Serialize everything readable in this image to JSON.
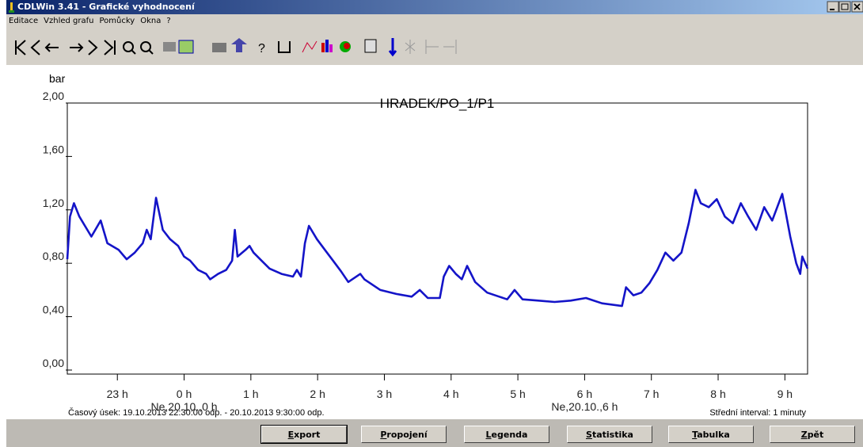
{
  "window": {
    "title": "CDLWin 3.41 - Grafické vyhodnocení",
    "menu": [
      "Editace",
      "Vzhled grafu",
      "Pomůcky",
      "Okna",
      "?"
    ],
    "buttons": [
      "Export",
      "Propojení",
      "Legenda",
      "Statistika",
      "Tabulka",
      "Zpět"
    ]
  },
  "chart_data": {
    "type": "line",
    "title": "HRADEK/PO_1/P1",
    "y_label": "bar",
    "xlim": [
      22.25,
      33.34
    ],
    "xticks": [
      {
        "value": 23,
        "label": "23 h"
      },
      {
        "value": 24,
        "label": "0 h"
      },
      {
        "value": 25,
        "label": "1 h"
      },
      {
        "value": 26,
        "label": "2 h"
      },
      {
        "value": 27,
        "label": "3 h"
      },
      {
        "value": 28,
        "label": "4 h"
      },
      {
        "value": 29,
        "label": "5 h"
      },
      {
        "value": 30,
        "label": "6 h"
      },
      {
        "value": 31,
        "label": "7 h"
      },
      {
        "value": 32,
        "label": "8 h"
      },
      {
        "value": 33,
        "label": "9 h"
      }
    ],
    "ylim": [
      -0.03,
      2.0
    ],
    "yticks": [
      {
        "value": 0,
        "label": "0,00"
      },
      {
        "value": 0.4,
        "label": "0,40"
      },
      {
        "value": 0.8,
        "label": "0,80"
      },
      {
        "value": 1.2,
        "label": "1,20"
      },
      {
        "value": 1.6,
        "label": "1,60"
      },
      {
        "value": 2.0,
        "label": "2,00"
      }
    ],
    "annotations": [
      {
        "text": "Ne,20.10.,0 h",
        "x": 24
      },
      {
        "text": "Ne,20.10.,6 h",
        "x": 30
      }
    ],
    "footer_left": "Časový úsek: 19.10.2013 22:30:00 odp. - 20.10.2013 9:30:00 odp.",
    "footer_right": "Střední interval: 1 minuty",
    "x": [
      22.25,
      22.29,
      22.35,
      22.43,
      22.61,
      22.75,
      22.85,
      23.02,
      23.14,
      23.26,
      23.38,
      23.44,
      23.5,
      23.58,
      23.68,
      23.79,
      23.91,
      24.0,
      24.09,
      24.21,
      24.33,
      24.39,
      24.51,
      24.63,
      24.72,
      24.76,
      24.8,
      24.92,
      24.98,
      25.04,
      25.16,
      25.28,
      25.46,
      25.63,
      25.69,
      25.75,
      25.81,
      25.87,
      25.99,
      26.11,
      26.23,
      26.35,
      26.46,
      26.64,
      26.7,
      26.94,
      27.18,
      27.41,
      27.53,
      27.65,
      27.83,
      27.89,
      27.97,
      28.07,
      28.16,
      28.24,
      28.36,
      28.54,
      28.72,
      28.84,
      28.95,
      29.07,
      29.31,
      29.55,
      29.79,
      30.02,
      30.26,
      30.56,
      30.62,
      30.73,
      30.85,
      30.97,
      31.09,
      31.21,
      31.33,
      31.45,
      31.56,
      31.66,
      31.74,
      31.86,
      31.98,
      32.1,
      32.22,
      32.34,
      32.45,
      32.57,
      32.69,
      32.81,
      32.96,
      33.08,
      33.17,
      33.23,
      33.26,
      33.34
    ],
    "series": [
      {
        "name": "HRADEK/PO_1/P1",
        "color": "#1414c8",
        "values": [
          0.83,
          1.15,
          1.25,
          1.15,
          1.0,
          1.12,
          0.95,
          0.9,
          0.83,
          0.88,
          0.95,
          1.05,
          0.98,
          1.29,
          1.05,
          0.98,
          0.93,
          0.85,
          0.82,
          0.75,
          0.72,
          0.68,
          0.72,
          0.75,
          0.82,
          1.05,
          0.85,
          0.9,
          0.93,
          0.88,
          0.82,
          0.76,
          0.72,
          0.7,
          0.75,
          0.7,
          0.95,
          1.08,
          0.98,
          0.9,
          0.82,
          0.74,
          0.66,
          0.72,
          0.68,
          0.6,
          0.57,
          0.55,
          0.6,
          0.54,
          0.54,
          0.7,
          0.78,
          0.72,
          0.68,
          0.78,
          0.66,
          0.58,
          0.55,
          0.53,
          0.6,
          0.53,
          0.52,
          0.51,
          0.52,
          0.54,
          0.5,
          0.48,
          0.62,
          0.56,
          0.58,
          0.65,
          0.75,
          0.88,
          0.82,
          0.88,
          1.1,
          1.35,
          1.25,
          1.22,
          1.28,
          1.15,
          1.1,
          1.25,
          1.15,
          1.05,
          1.22,
          1.12,
          1.32,
          1.0,
          0.8,
          0.72,
          0.85,
          0.76
        ]
      }
    ]
  }
}
